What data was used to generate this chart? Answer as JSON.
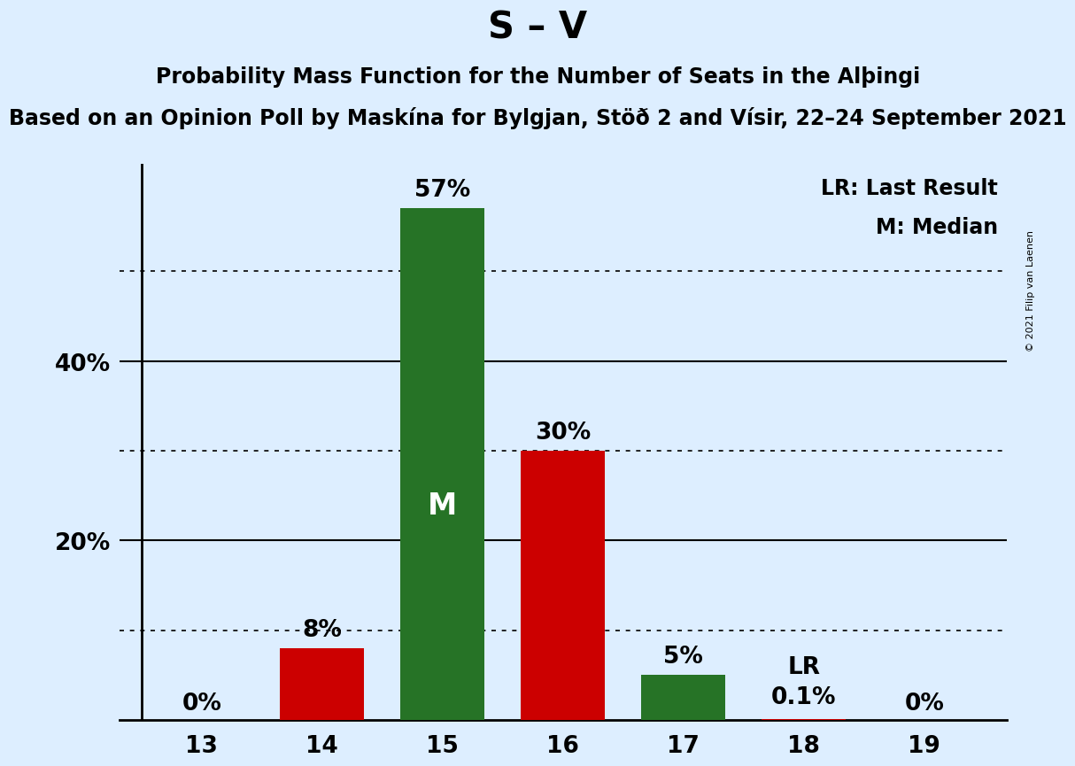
{
  "title": "S – V",
  "subtitle1": "Probability Mass Function for the Number of Seats in the Alþingi",
  "subtitle2": "Based on an Opinion Poll by Maskína for Bylgjan, Stöð 2 and Vísir, 22–24 September 2021",
  "copyright": "© 2021 Filip van Laenen",
  "categories": [
    13,
    14,
    15,
    16,
    17,
    18,
    19
  ],
  "values": [
    0,
    8,
    57,
    30,
    5,
    0.1,
    0
  ],
  "bar_colors": [
    "#cc0000",
    "#cc0000",
    "#267326",
    "#cc0000",
    "#267326",
    "#cc0000",
    "#cc0000"
  ],
  "bar_labels": [
    "0%",
    "8%",
    "57%",
    "30%",
    "5%",
    "0.1%",
    "0%"
  ],
  "median_bar_idx": 2,
  "lr_bar_idx": 5,
  "median_label": "M",
  "lr_label": "LR",
  "legend_lr": "LR: Last Result",
  "legend_m": "M: Median",
  "dotted_yticks": [
    10,
    30,
    50
  ],
  "solid_yticks": [
    20,
    40
  ],
  "ylim": [
    0,
    62
  ],
  "background_color": "#ddeeff",
  "title_fontsize": 30,
  "subtitle1_fontsize": 17,
  "subtitle2_fontsize": 17,
  "bar_label_fontsize": 19,
  "axis_tick_fontsize": 19,
  "legend_fontsize": 17,
  "median_label_fontsize": 24,
  "lr_label_fontsize": 19,
  "copyright_fontsize": 8
}
